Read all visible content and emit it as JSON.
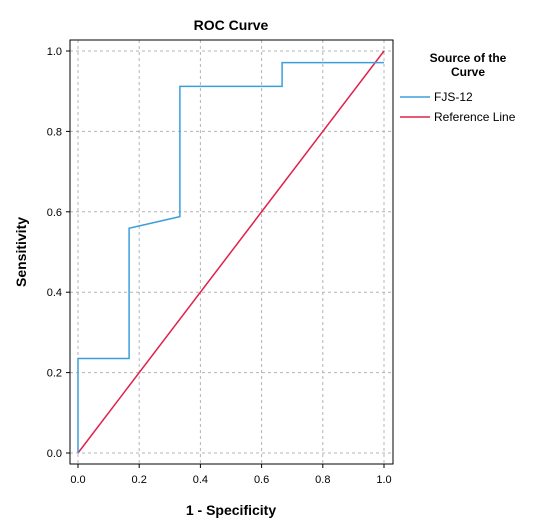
{
  "chart_data": {
    "type": "line",
    "title": "ROC Curve",
    "xlabel": "1 - Specificity",
    "ylabel": "Sensitivity",
    "xlim": [
      0,
      1
    ],
    "ylim": [
      0,
      1
    ],
    "xticks": [
      "0.0",
      "0.2",
      "0.4",
      "0.6",
      "0.8",
      "1.0"
    ],
    "yticks": [
      "0.0",
      "0.2",
      "0.4",
      "0.6",
      "0.8",
      "1.0"
    ],
    "grid": true,
    "legend": {
      "title_lines": [
        "Source of the",
        "Curve"
      ],
      "placement": "right"
    },
    "series": [
      {
        "name": "FJS-12",
        "color": "#3d9fd8",
        "x": [
          0,
          0,
          0.167,
          0.167,
          0.333,
          0.333,
          0.667,
          0.667,
          1.0
        ],
        "y": [
          0,
          0.235,
          0.235,
          0.559,
          0.588,
          0.912,
          0.912,
          0.971,
          0.971
        ]
      },
      {
        "name": "Reference Line",
        "color": "#e0204a",
        "x": [
          0,
          1
        ],
        "y": [
          0,
          1
        ]
      }
    ]
  }
}
